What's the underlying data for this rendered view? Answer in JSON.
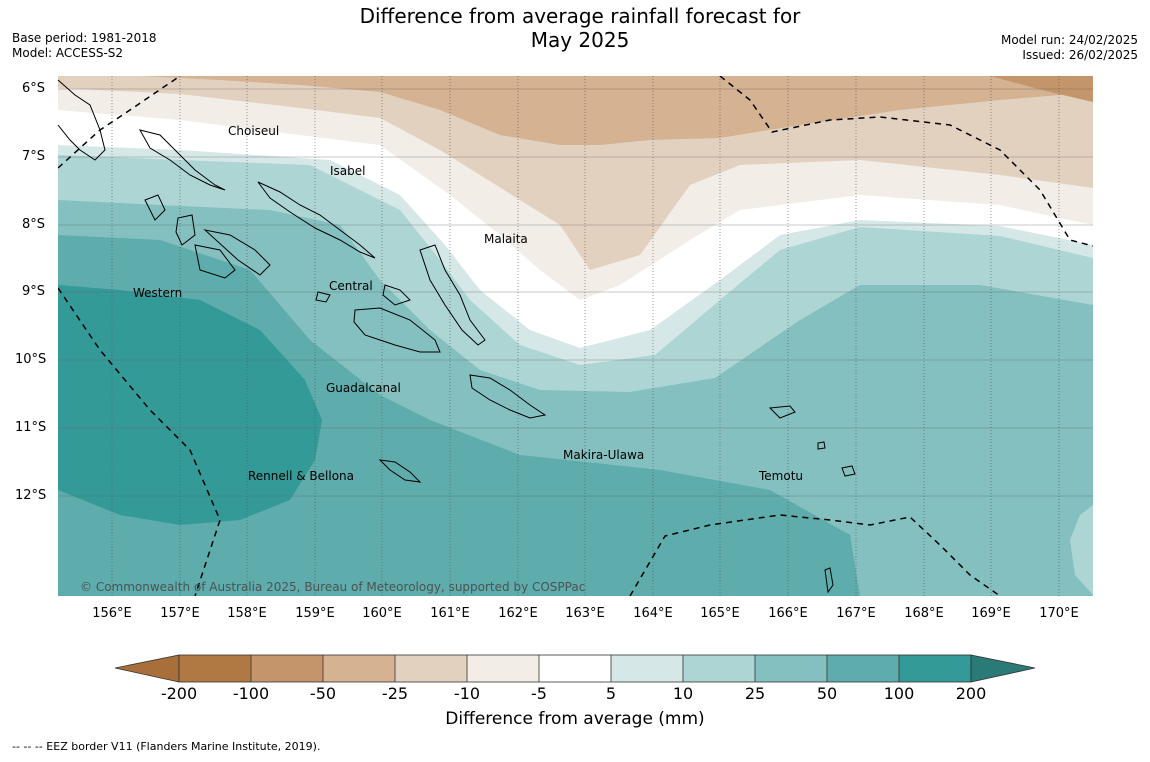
{
  "header": {
    "title_line1": "Difference from average rainfall forecast for",
    "title_line2": "May 2025",
    "base_period": "Base period: 1981-2018",
    "model": "Model: ACCESS-S2",
    "model_run": "Model run: 24/02/2025",
    "issued": "Issued: 26/02/2025"
  },
  "map": {
    "lat_labels": [
      "6°S",
      "7°S",
      "8°S",
      "9°S",
      "10°S",
      "11°S",
      "12°S"
    ],
    "lon_labels": [
      "156°E",
      "157°E",
      "158°E",
      "159°E",
      "160°E",
      "161°E",
      "162°E",
      "163°E",
      "164°E",
      "165°E",
      "166°E",
      "167°E",
      "168°E",
      "169°E",
      "170°E"
    ],
    "places": [
      "Choiseul",
      "Isabel",
      "Malaita",
      "Western",
      "Central",
      "Guadalcanal",
      "Makira-Ulawa",
      "Rennell & Bellona",
      "Temotu"
    ],
    "copyright": "© Commonwealth of Australia 2025, Bureau of Meteorology, supported by COSPPac"
  },
  "colorbar": {
    "ticks": [
      "-200",
      "-100",
      "-50",
      "-25",
      "-10",
      "-5",
      "5",
      "10",
      "25",
      "50",
      "100",
      "200"
    ],
    "label": "Difference from average (mm)",
    "colors": [
      "#a86f3b",
      "#b07843",
      "#c4946a",
      "#d4b292",
      "#e3d1c0",
      "#f2ede7",
      "#ffffff",
      "#d5e8e7",
      "#add5d4",
      "#84c0bf",
      "#5eacab",
      "#339a98",
      "#2a7a78"
    ]
  },
  "footer": {
    "eez_note": "--  --  -- EEZ border V11 (Flanders Marine Institute, 2019)."
  }
}
